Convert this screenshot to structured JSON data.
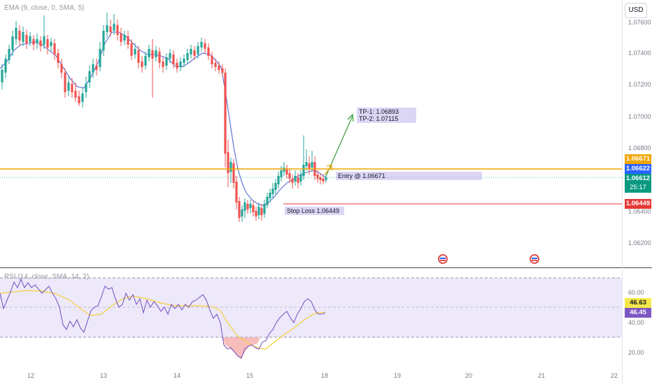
{
  "indicators": {
    "ema_label": "EMA (9, close, 0, SMA, 5)",
    "rsi_label": "RSI (14, close, SMA, 14, 2)"
  },
  "currency_button": "USD",
  "price_axis": [
    "1.07600",
    "1.07400",
    "1.07200",
    "1.07000",
    "1.06800",
    "1.06400",
    "1.06200"
  ],
  "rsi_axis": [
    "60.00",
    "40.00",
    "20.00"
  ],
  "time_axis": [
    "12",
    "13",
    "14",
    "15",
    "18",
    "19",
    "20",
    "21",
    "22"
  ],
  "price_tags": {
    "upper_orange": "1.06671",
    "current_blue": "1.06622",
    "last_green": "1.06612",
    "countdown": "25:17",
    "stop_red": "1.06449"
  },
  "rsi_tags": {
    "rsi_ma": "46.63",
    "rsi_value": "46.45"
  },
  "annotations": {
    "tp1": "TP-1: 1.06893",
    "tp2": "TP-2: 1.07115",
    "entry": "Entry @ 1.06671",
    "stop_loss": "Stop Loss 1.06449"
  },
  "colors": {
    "up": "#26a69a",
    "down": "#ef5350",
    "ema": "#5b6bd1",
    "entry_line": "#f0a500",
    "stop_line": "#e53935",
    "arrow": "#43a047",
    "rsi_line": "#7e57c2",
    "rsi_ma": "#f5d03b"
  }
}
